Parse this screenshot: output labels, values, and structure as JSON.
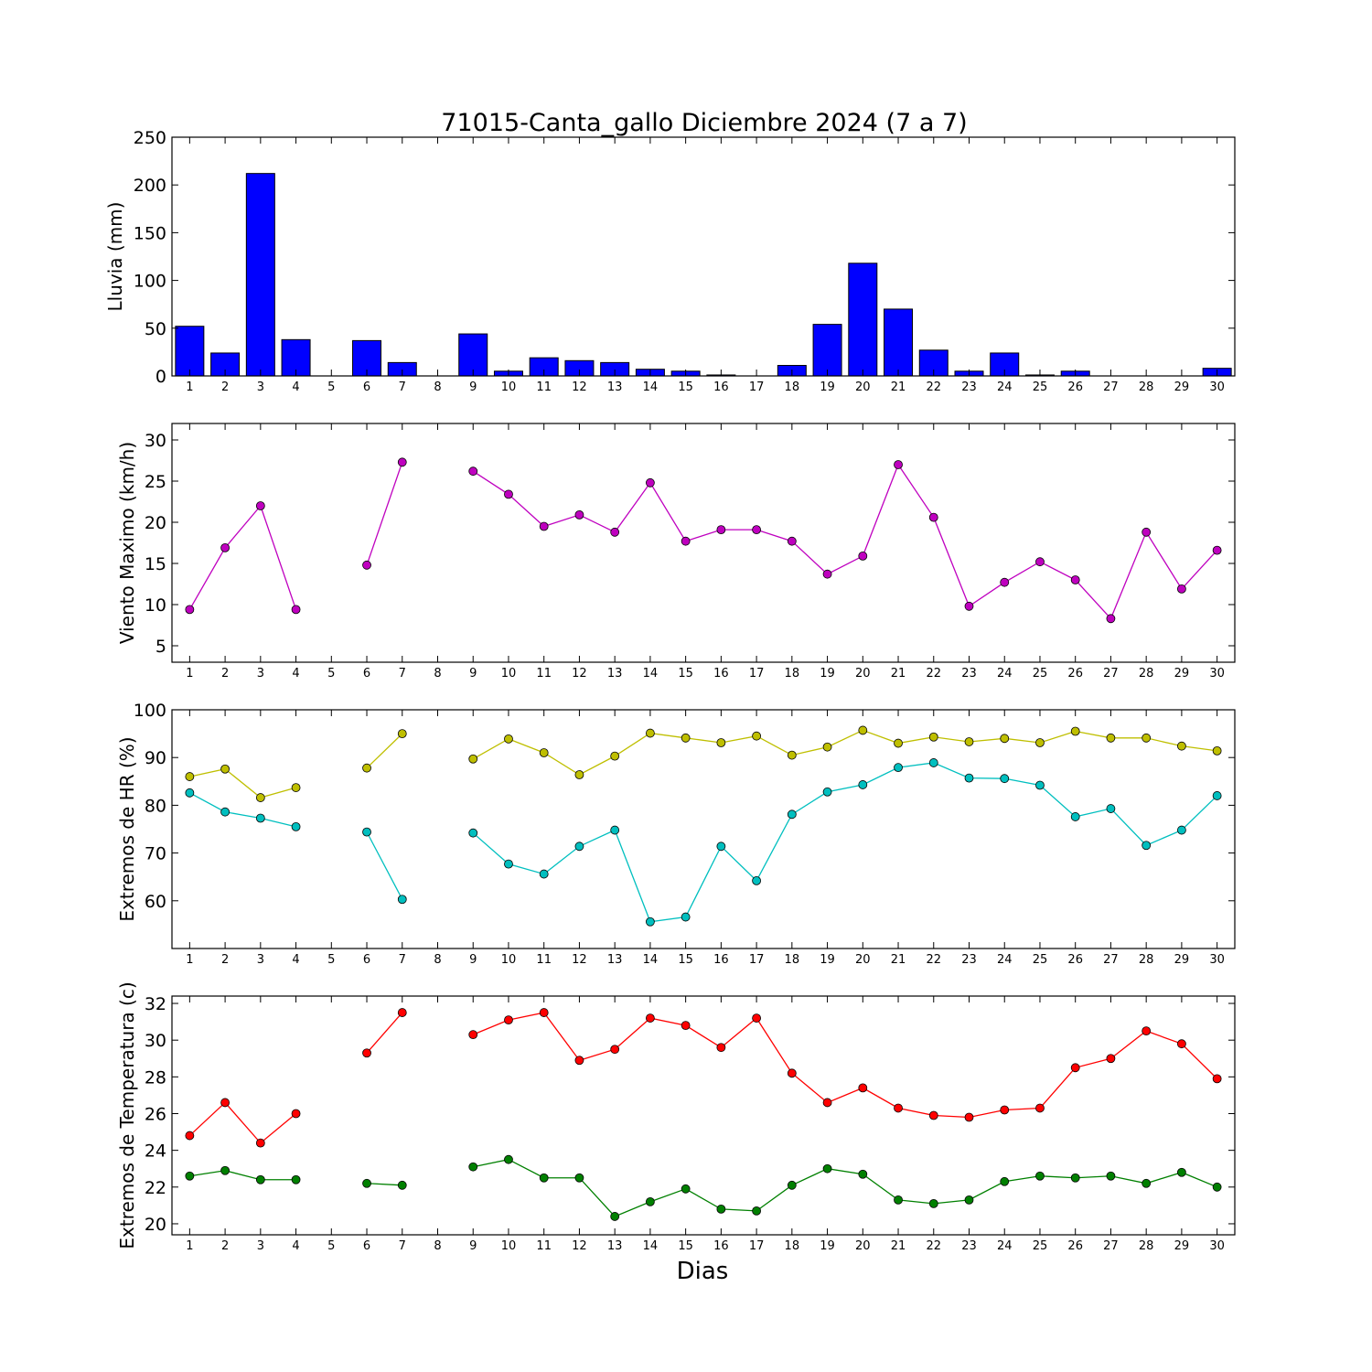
{
  "title": "71015-Canta_gallo Diciembre 2024  (7 a 7)",
  "xlabel": "Dias",
  "days": [
    1,
    2,
    3,
    4,
    5,
    6,
    7,
    8,
    9,
    10,
    11,
    12,
    13,
    14,
    15,
    16,
    17,
    18,
    19,
    20,
    21,
    22,
    23,
    24,
    25,
    26,
    27,
    28,
    29,
    30
  ],
  "chart_data": [
    {
      "type": "bar",
      "ylabel": "Lluvia (mm)",
      "ylim": [
        0,
        250
      ],
      "yticks": [
        0,
        50,
        100,
        150,
        200,
        250
      ],
      "series": [
        {
          "color": "#0000ff",
          "values": [
            52,
            24,
            212,
            38,
            0,
            37,
            14,
            0,
            44,
            5,
            19,
            16,
            14,
            7,
            5,
            1,
            0,
            11,
            54,
            118,
            70,
            27,
            5,
            24,
            1,
            5,
            0,
            0,
            0,
            8
          ]
        }
      ]
    },
    {
      "type": "line",
      "ylabel": "Viento Maximo (km/h)",
      "ylim": [
        3,
        32
      ],
      "yticks": [
        5,
        10,
        15,
        20,
        25,
        30
      ],
      "series": [
        {
          "color": "#bf00bf",
          "values": [
            9.4,
            16.9,
            22.0,
            9.4,
            null,
            14.8,
            27.3,
            null,
            26.2,
            23.4,
            19.5,
            20.9,
            18.8,
            24.8,
            17.7,
            19.1,
            19.1,
            17.7,
            13.7,
            15.9,
            27.0,
            20.6,
            9.8,
            12.7,
            15.2,
            13.0,
            8.3,
            18.8,
            11.9,
            16.6
          ]
        }
      ]
    },
    {
      "type": "line",
      "ylabel": "Extremos de HR (%)",
      "ylim": [
        50,
        100
      ],
      "yticks": [
        60,
        70,
        80,
        90,
        100
      ],
      "series": [
        {
          "color": "#bfbf00",
          "values": [
            86,
            87.6,
            81.6,
            83.7,
            null,
            87.8,
            95,
            null,
            89.7,
            93.9,
            91,
            86.4,
            90.3,
            95.1,
            94.1,
            93.1,
            94.5,
            90.5,
            92.2,
            95.7,
            93,
            94.3,
            93.3,
            94,
            93.1,
            95.5,
            94.1,
            94.1,
            92.4,
            91.4
          ]
        },
        {
          "color": "#00bfbf",
          "values": [
            82.6,
            78.6,
            77.3,
            75.5,
            null,
            74.4,
            60.3,
            null,
            74.2,
            67.7,
            65.6,
            71.4,
            74.8,
            55.6,
            56.6,
            71.4,
            64.2,
            78.1,
            82.8,
            84.3,
            87.9,
            88.9,
            85.7,
            85.6,
            84.2,
            77.6,
            79.3,
            71.6,
            74.8,
            82
          ]
        }
      ]
    },
    {
      "type": "line",
      "ylabel": "Extremos de Temperatura (c)",
      "ylim": [
        19.4,
        32.4
      ],
      "yticks": [
        20,
        22,
        24,
        26,
        28,
        30,
        32
      ],
      "series": [
        {
          "color": "#ff0000",
          "values": [
            24.8,
            26.6,
            24.4,
            26.0,
            null,
            29.3,
            31.5,
            null,
            30.3,
            31.1,
            31.5,
            28.9,
            29.5,
            31.2,
            30.8,
            29.6,
            31.2,
            28.2,
            26.6,
            27.4,
            26.3,
            25.9,
            25.8,
            26.2,
            26.3,
            28.5,
            29.0,
            30.5,
            29.8,
            27.9
          ]
        },
        {
          "color": "#008000",
          "values": [
            22.6,
            22.9,
            22.4,
            22.4,
            null,
            22.2,
            22.1,
            null,
            23.1,
            23.5,
            22.5,
            22.5,
            20.4,
            21.2,
            21.9,
            20.8,
            20.7,
            22.1,
            23.0,
            22.7,
            21.3,
            21.1,
            21.3,
            22.3,
            22.6,
            22.5,
            22.6,
            22.2,
            22.8,
            22.0
          ]
        }
      ]
    }
  ]
}
